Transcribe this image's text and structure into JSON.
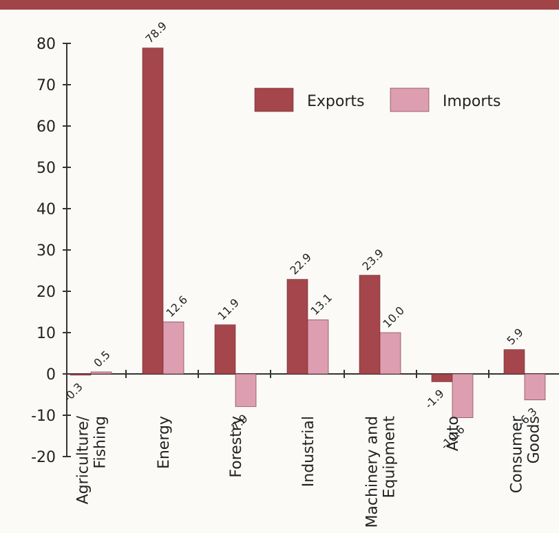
{
  "chart_data": {
    "type": "bar",
    "categories": [
      [
        "Agriculture/",
        "Fishing"
      ],
      [
        "Energy"
      ],
      [
        "Forestry"
      ],
      [
        "Industrial"
      ],
      [
        "Machinery and",
        "Equipment"
      ],
      [
        "Auto"
      ],
      [
        "Consumer",
        "Goods"
      ]
    ],
    "series": [
      {
        "name": "Exports",
        "values": [
          -0.3,
          78.9,
          11.9,
          22.9,
          23.9,
          -1.9,
          5.9
        ],
        "labels": [
          "-0.3",
          "78.9",
          "11.9",
          "22.9",
          "23.9",
          "-1.9",
          "5.9"
        ],
        "color": "#a4464b"
      },
      {
        "name": "Imports",
        "values": [
          0.5,
          12.6,
          -7.9,
          13.1,
          10.0,
          -10.6,
          -6.3
        ],
        "labels": [
          "0.5",
          "12.6",
          "-7.9",
          "13.1",
          "10.0",
          "-10.6",
          "-6.3"
        ],
        "color": "#dc9eb0"
      }
    ],
    "yticks": [
      80,
      70,
      60,
      50,
      40,
      30,
      20,
      10,
      0,
      -10,
      -20
    ],
    "ylim": [
      -20,
      80
    ],
    "legend_position": "top-right",
    "grid": false,
    "title": "",
    "xlabel": "",
    "ylabel": ""
  },
  "colors": {
    "accent_bar": "#a04447",
    "axis": "#333333",
    "background": "#fbfaf7"
  }
}
